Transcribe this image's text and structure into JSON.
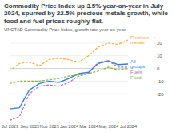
{
  "chart_data": {
    "type": "line",
    "title": "Commodity Price Index up 3.5% year-on-year in July 2024, spurred by 22.5% precious metals growth, while food and fuel prices roughly flat.",
    "subtitle": "UNCTAD Commodity Price Index, growth rate year-on-year",
    "categories": [
      "Jul 2023",
      null,
      "Sep 2023",
      null,
      "Nov 2023",
      null,
      "Jan 2024",
      null,
      "Mar 2024",
      null,
      "May 2024",
      null,
      "Jul 2024"
    ],
    "series": [
      {
        "name": "Precious metals",
        "color": "#f5a742",
        "line_style": "dashed",
        "values": [
          -2,
          4,
          5,
          2,
          7,
          8,
          7,
          5,
          10,
          17,
          20,
          19,
          22.5
        ]
      },
      {
        "name": "All groups",
        "color": "#2f7fd6",
        "line_style": "solid",
        "values": [
          -32,
          -31,
          -17,
          -12,
          -10,
          -11,
          -8,
          -4,
          -3,
          4,
          6,
          3,
          3.5
        ]
      },
      {
        "name": "Fuels",
        "color": "#a06cc4",
        "line_style": "dashed",
        "values": [
          -41,
          -38,
          -20,
          -14,
          -13,
          -14,
          -11,
          -6,
          -4,
          5,
          6,
          1,
          1
        ]
      },
      {
        "name": "Food",
        "color": "#7cb342",
        "line_style": "dashed",
        "values": [
          -12,
          -10,
          -10,
          -10,
          -9,
          -8,
          -6,
          -5,
          -4,
          -2,
          1,
          -1,
          0
        ]
      }
    ],
    "ylim": [
      -42,
      25
    ],
    "yticks": [
      -20,
      -10,
      0,
      10,
      20
    ],
    "grid": true
  }
}
